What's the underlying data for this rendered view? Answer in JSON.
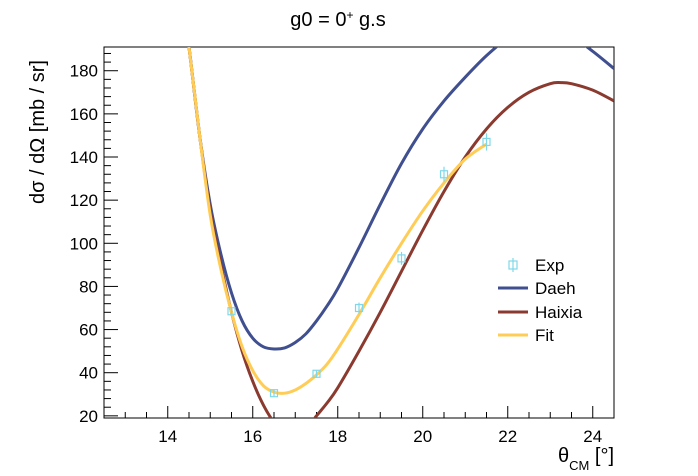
{
  "chart_data": {
    "type": "line",
    "title_parts": {
      "base": "g0 = 0",
      "sup": "+",
      "rest": " g.s"
    },
    "ylabel": "dσ / dΩ [mb / sr]",
    "xlabel_parts": {
      "base": "θ",
      "sub": "CM",
      "rest": " [°]"
    },
    "xlim": [
      12.5,
      24.5
    ],
    "ylim": [
      19,
      191
    ],
    "x_ticks": [
      14,
      16,
      18,
      20,
      22,
      24
    ],
    "x_tick_labels": [
      "14",
      "16",
      "18",
      "20",
      "22",
      "24"
    ],
    "y_ticks": [
      20,
      40,
      60,
      80,
      100,
      120,
      140,
      160,
      180
    ],
    "y_tick_labels": [
      "20",
      "40",
      "60",
      "80",
      "100",
      "120",
      "140",
      "160",
      "180"
    ],
    "grid": false,
    "legend_position": "right",
    "points": {
      "name": "Exp",
      "color": "#7fd8ea",
      "data": [
        {
          "x": 15.5,
          "y": 68.5,
          "err": 2.0
        },
        {
          "x": 16.5,
          "y": 30.5,
          "err": 1.5
        },
        {
          "x": 17.5,
          "y": 39.5,
          "err": 1.8
        },
        {
          "x": 18.5,
          "y": 70.0,
          "err": 2.5
        },
        {
          "x": 19.5,
          "y": 93.0,
          "err": 3.0
        },
        {
          "x": 20.5,
          "y": 132.0,
          "err": 3.5
        },
        {
          "x": 21.5,
          "y": 147.0,
          "err": 4.0
        }
      ]
    },
    "series": [
      {
        "name": "Daeh",
        "color": "#3f4f8f",
        "x": [
          14.35,
          14.5,
          14.75,
          15.0,
          15.25,
          15.5,
          15.75,
          16.0,
          16.25,
          16.5,
          16.75,
          17.0,
          17.25,
          17.5,
          17.75,
          18.0,
          18.5,
          19.0,
          19.5,
          20.0,
          20.5,
          21.0,
          21.5,
          22.0,
          22.5,
          23.0,
          23.5,
          24.0,
          24.5
        ],
        "y": [
          210,
          191,
          150,
          118,
          95,
          77,
          64,
          56,
          52,
          51,
          51.5,
          54,
          58,
          64,
          71,
          79,
          98,
          118,
          137,
          153,
          166,
          177,
          187,
          195,
          199,
          199,
          196,
          189,
          181
        ]
      },
      {
        "name": "Haixia",
        "color": "#8b3a2f",
        "x": [
          14.35,
          14.5,
          14.75,
          15.0,
          15.25,
          15.5,
          15.75,
          16.0,
          16.25,
          16.5,
          16.75,
          17.0,
          17.25,
          17.5,
          17.75,
          18.0,
          18.5,
          19.0,
          19.5,
          20.0,
          20.5,
          21.0,
          21.5,
          22.0,
          22.5,
          23.0,
          23.25,
          23.5,
          24.0,
          24.5
        ],
        "y": [
          210,
          191,
          150,
          115,
          90,
          68,
          50,
          36,
          25,
          17,
          12,
          11,
          14,
          20,
          26,
          33,
          50,
          68,
          87,
          106,
          124,
          140,
          153,
          163,
          170,
          174,
          174.5,
          174,
          171,
          166
        ]
      },
      {
        "name": "Fit",
        "color": "#ffcc55",
        "x": [
          14.35,
          14.5,
          14.75,
          15.0,
          15.25,
          15.5,
          15.75,
          16.0,
          16.25,
          16.5,
          16.75,
          17.0,
          17.25,
          17.5,
          17.75,
          18.0,
          18.5,
          19.0,
          19.5,
          20.0,
          20.5,
          21.0,
          21.5
        ],
        "y": [
          210,
          191,
          150,
          113,
          88,
          68,
          52,
          41,
          34,
          31,
          30.5,
          32,
          35,
          39,
          44,
          51,
          67,
          84,
          100,
          115,
          128,
          139,
          146
        ]
      }
    ]
  }
}
